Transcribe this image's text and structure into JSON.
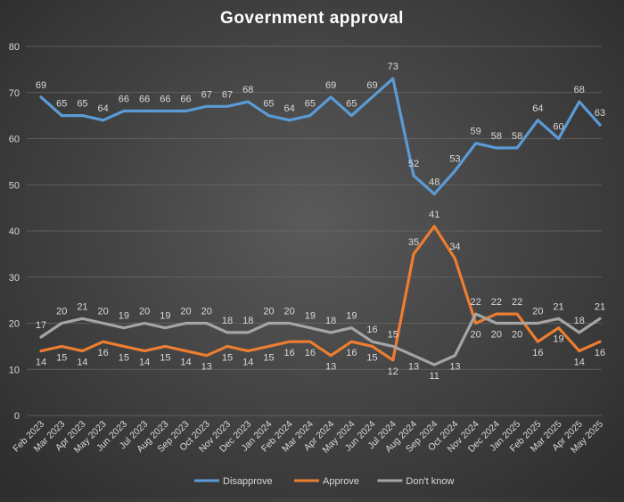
{
  "chart_data": {
    "type": "line",
    "title": "Government  approval",
    "xlabel": "",
    "ylabel": "",
    "ylim": [
      0,
      80
    ],
    "yticks": [
      0,
      10,
      20,
      30,
      40,
      50,
      60,
      70,
      80
    ],
    "grid": true,
    "legend_position": "bottom",
    "categories": [
      "Feb 2023",
      "Mar 2023",
      "Apr 2023",
      "May 2023",
      "Jun 2023",
      "Jul 2023",
      "Aug 2023",
      "Sep 2023",
      "Oct 2023",
      "Nov 2023",
      "Dec 2023",
      "Jan 2024",
      "Feb 2024",
      "Mar 2024",
      "Apr 2024",
      "May 2024",
      "Jun 2024",
      "Jul 2024",
      "Aug 2024",
      "Sep 2024",
      "Oct 2024",
      "Nov 2024",
      "Dec 2024",
      "Jan 2025",
      "Feb 2025",
      "Mar 2025",
      "Apr 2025",
      "May 2025"
    ],
    "series": [
      {
        "name": "Disapprove",
        "color": "#5b9bd5",
        "values": [
          69,
          65,
          65,
          64,
          66,
          66,
          66,
          66,
          67,
          67,
          68,
          65,
          64,
          65,
          69,
          65,
          69,
          73,
          52,
          48,
          53,
          59,
          58,
          58,
          64,
          60,
          68,
          63
        ]
      },
      {
        "name": "Approve",
        "color": "#ed7d31",
        "values": [
          14,
          15,
          14,
          16,
          15,
          14,
          15,
          14,
          13,
          15,
          14,
          15,
          16,
          16,
          13,
          16,
          15,
          12,
          35,
          41,
          34,
          20,
          22,
          22,
          16,
          19,
          14,
          16
        ]
      },
      {
        "name": "Don't know",
        "color": "#a5a5a5",
        "values": [
          17,
          20,
          21,
          20,
          19,
          20,
          19,
          20,
          20,
          18,
          18,
          20,
          20,
          19,
          18,
          19,
          16,
          15,
          13,
          11,
          13,
          22,
          20,
          20,
          20,
          21,
          18,
          21
        ]
      }
    ],
    "colors": {
      "grid": "#6a6a6a",
      "text": "#d9d9d9",
      "title": "#ffffff"
    }
  }
}
